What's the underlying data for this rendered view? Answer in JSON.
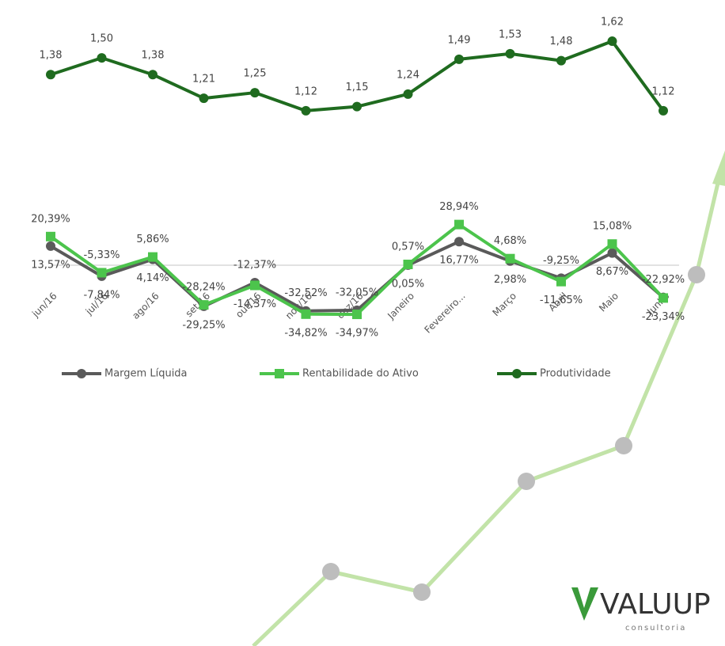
{
  "chart_data": {
    "type": "line",
    "categories": [
      "jun/16",
      "jul/16",
      "ago/16",
      "set/16",
      "out/16",
      "nov/16",
      "dez/16",
      "Janeiro",
      "Fevereiro...",
      "Março",
      "Abril",
      "Maio",
      "Junho"
    ],
    "ylim": [
      -40,
      40
    ],
    "y2lim": [
      1.0,
      1.7
    ],
    "legend": "bottom",
    "series": [
      {
        "name": "Margem Líquida",
        "color": "#5a5a5a",
        "marker": "circle",
        "values": [
          13.57,
          -7.84,
          4.14,
          -29.25,
          -12.37,
          -32.52,
          -32.05,
          0.05,
          16.77,
          2.98,
          -9.25,
          8.67,
          -22.92
        ],
        "value_labels": [
          "13,57%",
          "-7,84%",
          "4,14%",
          "-29,25%",
          "-12,37%",
          "-32,52%",
          "-32,05%",
          "0,05%",
          "16,77%",
          "2,98%",
          "-9,25%",
          "8,67%",
          "-22,92%"
        ]
      },
      {
        "name": "Rentabilidade do Ativo",
        "color": "#4cc44c",
        "marker": "square",
        "values": [
          20.39,
          -5.33,
          5.86,
          -28.24,
          -14.37,
          -34.82,
          -34.97,
          0.57,
          28.94,
          4.68,
          -11.65,
          15.08,
          -23.34
        ],
        "value_labels": [
          "20,39%",
          "-5,33%",
          "5,86%",
          "-28,24%",
          "-14,37%",
          "-34,82%",
          "-34,97%",
          "0,57%",
          "28,94%",
          "4,68%",
          "-11,65%",
          "15,08%",
          "-23,34%"
        ]
      },
      {
        "name": "Produtividade",
        "color": "#1f6b1f",
        "marker": "circle",
        "axis": "y2",
        "values": [
          1.38,
          1.5,
          1.38,
          1.21,
          1.25,
          1.12,
          1.15,
          1.24,
          1.49,
          1.53,
          1.48,
          1.62,
          1.12
        ],
        "value_labels": [
          "1,38",
          "1,50",
          "1,38",
          "1,21",
          "1,25",
          "1,12",
          "1,15",
          "1,24",
          "1,49",
          "1,53",
          "1,48",
          "1,62",
          "1,12"
        ]
      }
    ]
  },
  "logo": {
    "text": "VALUUP",
    "subtitle": "consultoria"
  }
}
